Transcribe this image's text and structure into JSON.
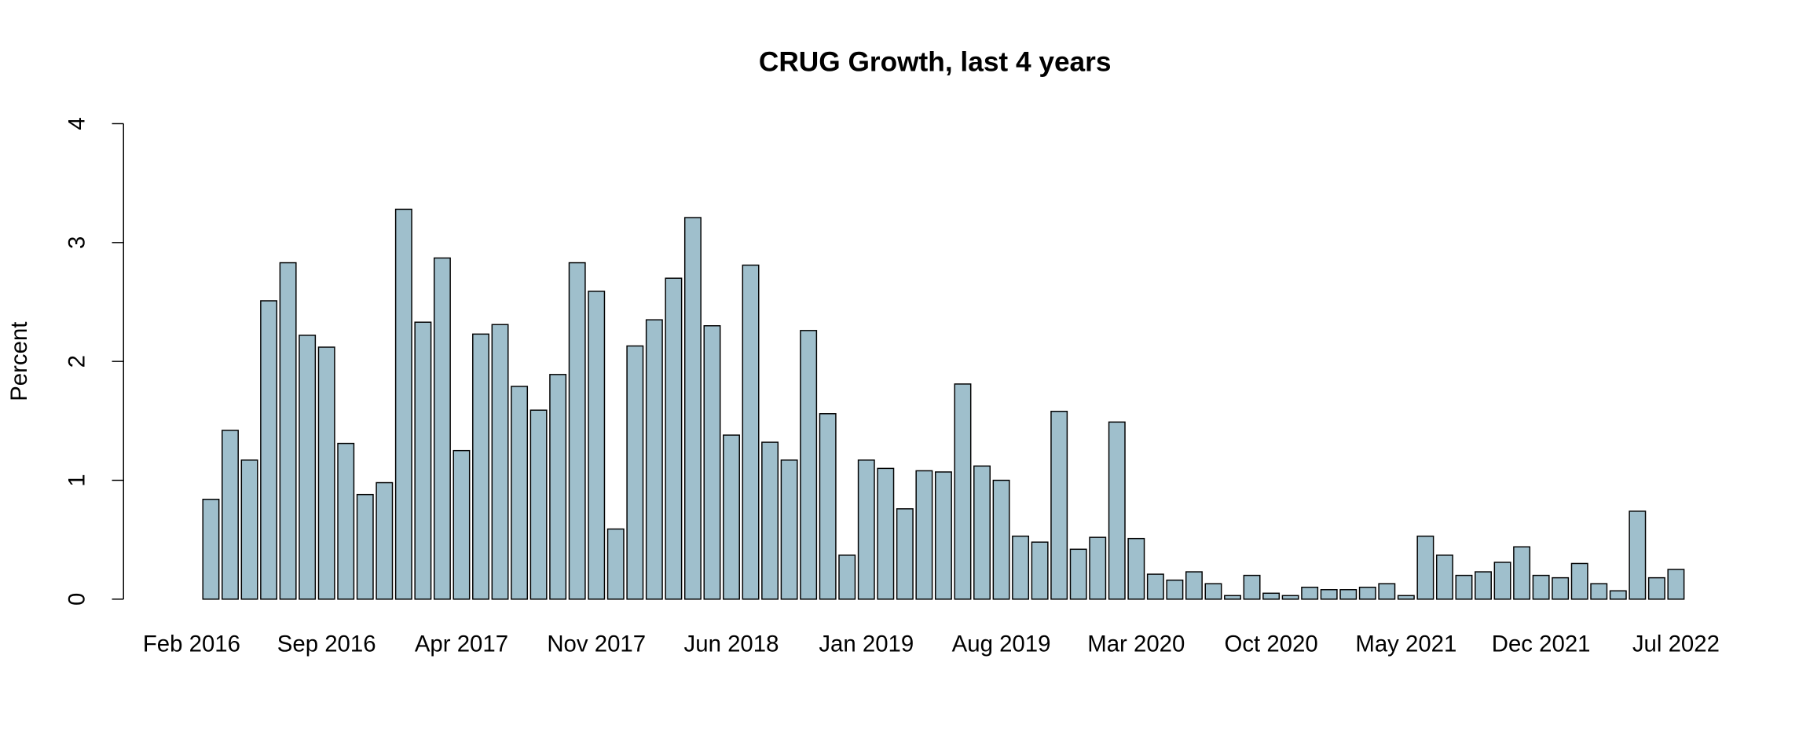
{
  "chart_data": {
    "type": "bar",
    "title": "CRUG Growth, last 4 years",
    "y_label": "Percent",
    "categories": [
      "Feb 2016",
      null,
      null,
      null,
      null,
      null,
      null,
      "Sep 2016",
      null,
      null,
      null,
      null,
      null,
      null,
      "Apr 2017",
      null,
      null,
      null,
      null,
      null,
      null,
      "Nov 2017",
      null,
      null,
      null,
      null,
      null,
      null,
      "Jun 2018",
      null,
      null,
      null,
      null,
      null,
      null,
      "Jan 2019",
      null,
      null,
      null,
      null,
      null,
      null,
      "Aug 2019",
      null,
      null,
      null,
      null,
      null,
      null,
      "Mar 2020",
      null,
      null,
      null,
      null,
      null,
      null,
      "Oct 2020",
      null,
      null,
      null,
      null,
      null,
      null,
      "May 2021",
      null,
      null,
      null,
      null,
      null,
      null,
      "Dec 2021",
      null,
      null,
      null,
      null,
      null,
      null,
      "Jul 2022"
    ],
    "values": [
      null,
      0.84,
      1.42,
      1.17,
      2.51,
      2.83,
      2.22,
      2.12,
      1.31,
      0.88,
      0.98,
      3.28,
      2.33,
      2.87,
      1.25,
      2.23,
      2.31,
      1.79,
      1.59,
      1.89,
      2.83,
      2.59,
      0.59,
      2.13,
      2.35,
      2.7,
      3.21,
      2.3,
      1.38,
      2.81,
      1.32,
      1.17,
      2.26,
      1.56,
      0.37,
      1.17,
      1.1,
      0.76,
      1.08,
      1.07,
      1.81,
      1.12,
      1.0,
      0.53,
      0.48,
      1.58,
      0.42,
      0.52,
      1.49,
      0.51,
      0.21,
      0.16,
      0.23,
      0.13,
      0.03,
      0.2,
      0.05,
      0.03,
      0.1,
      0.08,
      0.08,
      0.1,
      0.13,
      0.03,
      0.53,
      0.37,
      0.2,
      0.23,
      0.31,
      0.44,
      0.2,
      0.18,
      0.3,
      0.13,
      0.07,
      0.74,
      0.18,
      0.25
    ],
    "color": "#9fbfcc",
    "ylim": [
      0,
      4
    ],
    "yticks": [
      0,
      1,
      2,
      3,
      4
    ]
  }
}
